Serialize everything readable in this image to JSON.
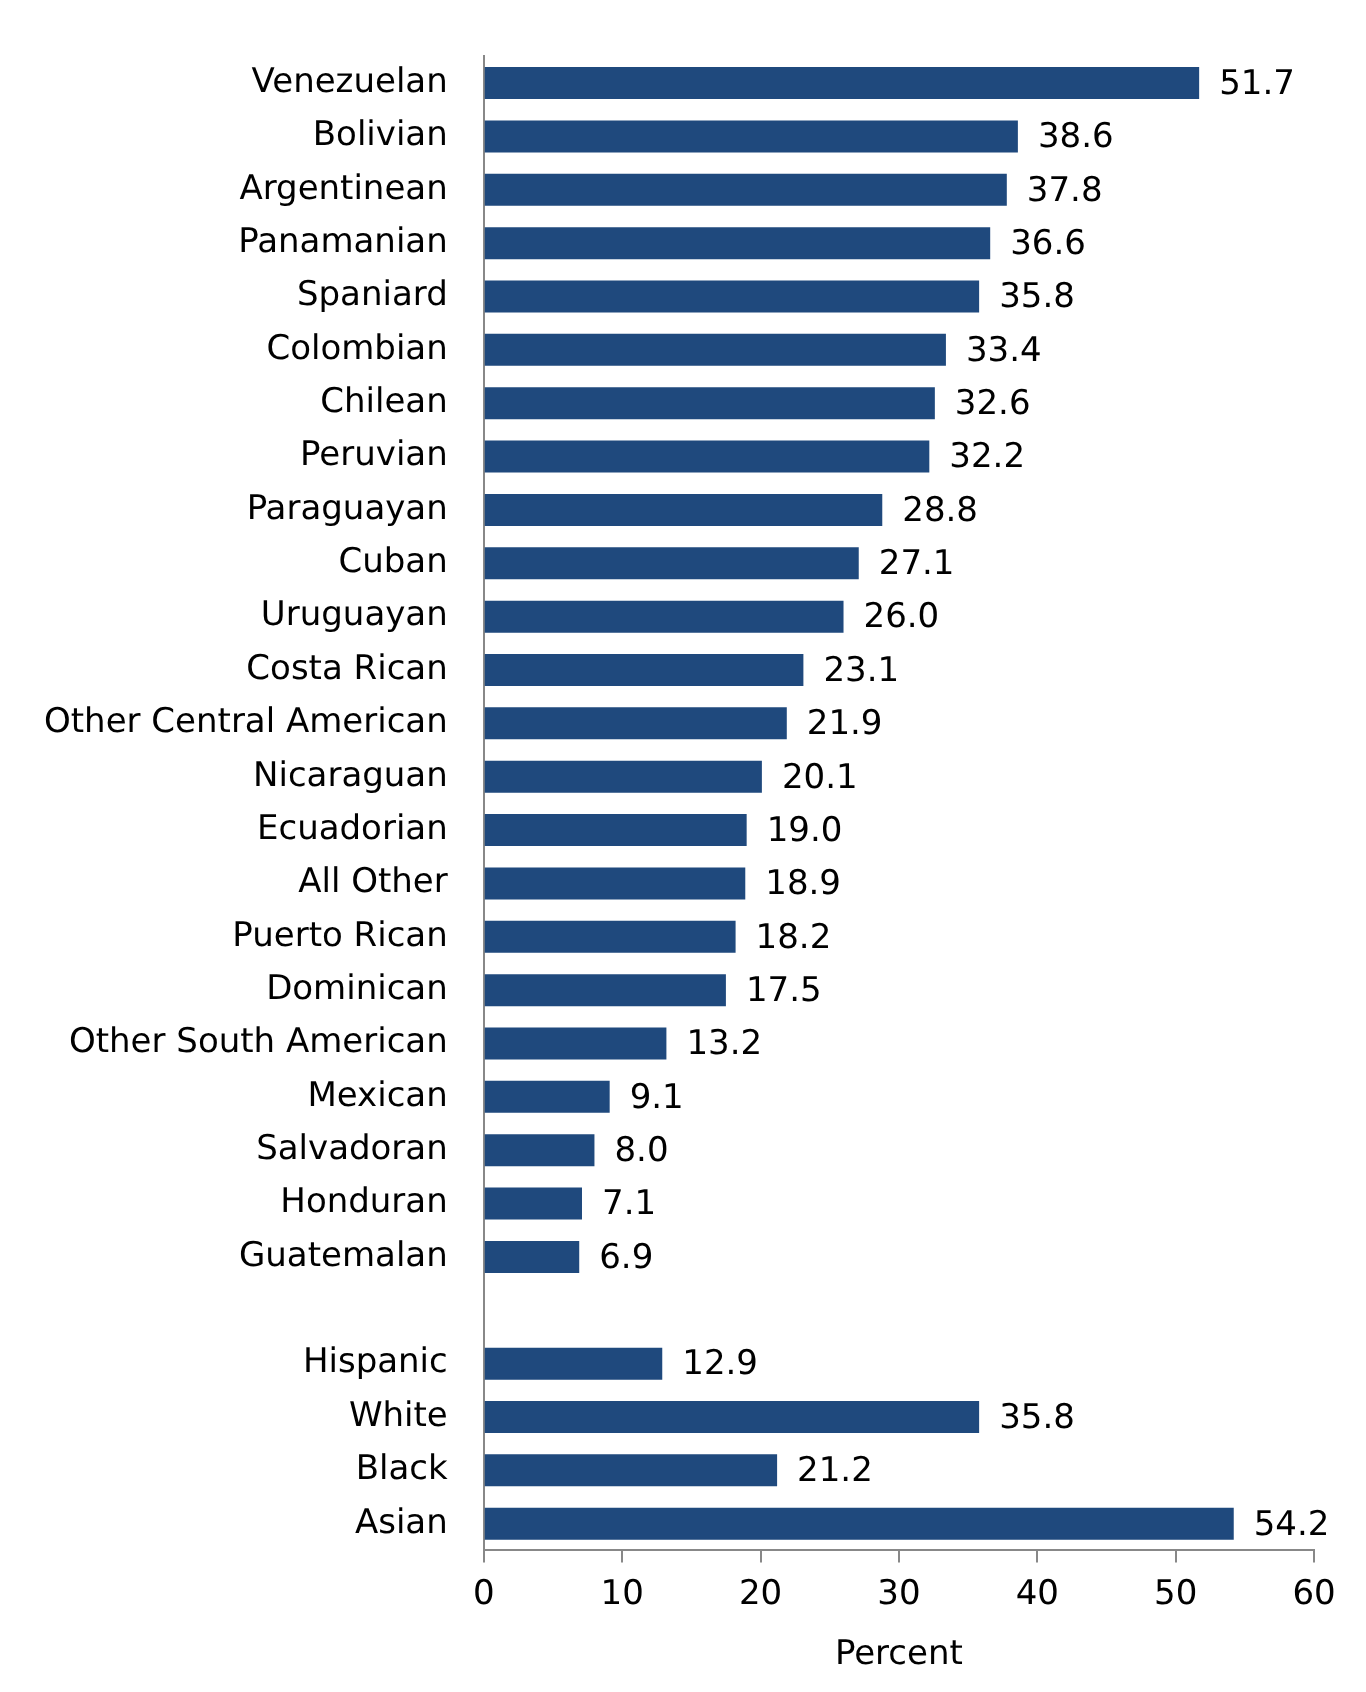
{
  "chart_data": {
    "type": "bar",
    "orientation": "horizontal",
    "xlabel": "Percent",
    "categories": [
      "Venezuelan",
      "Bolivian",
      "Argentinean",
      "Panamanian",
      "Spaniard",
      "Colombian",
      "Chilean",
      "Peruvian",
      "Paraguayan",
      "Cuban",
      "Uruguayan",
      "Costa Rican",
      "Other Central American",
      "Nicaraguan",
      "Ecuadorian",
      "All Other",
      "Puerto Rican",
      "Dominican",
      "Other South American",
      "Mexican",
      "Salvadoran",
      "Honduran",
      "Guatemalan",
      null,
      "Hispanic",
      "White",
      "Black",
      "Asian"
    ],
    "values": [
      51.7,
      38.6,
      37.8,
      36.6,
      35.8,
      33.4,
      32.6,
      32.2,
      28.8,
      27.1,
      26.0,
      23.1,
      21.9,
      20.1,
      19.0,
      18.9,
      18.2,
      17.5,
      13.2,
      9.1,
      8.0,
      7.1,
      6.9,
      null,
      12.9,
      35.8,
      21.2,
      54.2
    ],
    "value_labels": [
      "51.7",
      "38.6",
      "37.8",
      "36.6",
      "35.8",
      "33.4",
      "32.6",
      "32.2",
      "28.8",
      "27.1",
      "26.0",
      "23.1",
      "21.9",
      "20.1",
      "19.0",
      "18.9",
      "18.2",
      "17.5",
      "13.2",
      "9.1",
      "8.0",
      "7.1",
      "6.9",
      null,
      "12.9",
      "35.8",
      "21.2",
      "54.2"
    ],
    "color": "#1f497d",
    "xlim": [
      0,
      60
    ],
    "xticks": [
      0,
      10,
      20,
      30,
      40,
      50,
      60
    ],
    "grid": false
  }
}
